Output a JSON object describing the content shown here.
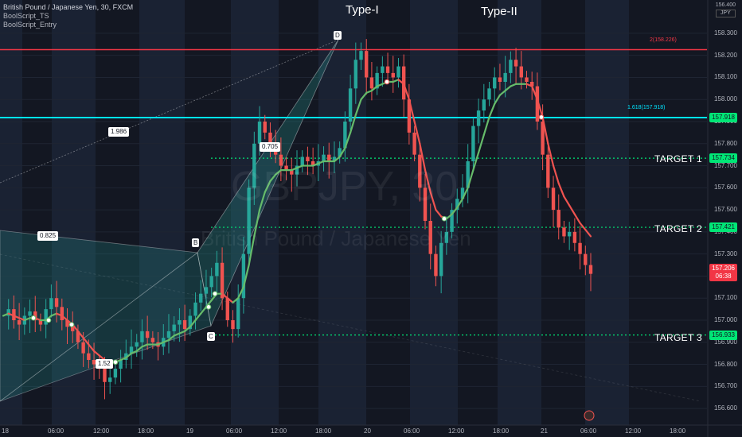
{
  "legend": {
    "symbol": "British Pound / Japanese Yen, 30, FXCM",
    "indicators": [
      "BoolScript_TS",
      "BoolScript_Entry"
    ]
  },
  "watermark": {
    "ticker": "GBPJPY, 30",
    "name": "British Pound / Japanese Yen"
  },
  "currency": {
    "top": "156.400",
    "unit": "JPY"
  },
  "annotations": {
    "type1": "Type-I",
    "type2": "Type-II",
    "target1": "TARGET 1",
    "target2": "TARGET 2",
    "target3": "TARGET 3"
  },
  "pattern_points": {
    "b": "B",
    "c": "C",
    "d": "D"
  },
  "ratios": {
    "r1": "1.986",
    "r2": "0.825",
    "r3": "1.52",
    "r4": "0.705"
  },
  "fib_labels": {
    "level2": "2(158.226)",
    "level1618": "1.618(157.918)"
  },
  "price_axis": [
    "158.300",
    "158.200",
    "158.100",
    "158.000",
    "157.900",
    "157.800",
    "157.700",
    "157.600",
    "157.500",
    "157.400",
    "157.300",
    "157.200",
    "157.100",
    "157.000",
    "156.900",
    "156.800",
    "156.700",
    "156.600"
  ],
  "price_tags": [
    {
      "value": "157.918",
      "bg": "#00e676",
      "fg": "#131722"
    },
    {
      "value": "157.734",
      "bg": "#00e676",
      "fg": "#131722"
    },
    {
      "value": "157.421",
      "bg": "#00e676",
      "fg": "#131722"
    },
    {
      "value": "156.933",
      "bg": "#00e676",
      "fg": "#131722"
    }
  ],
  "last_price": {
    "value": "157.206",
    "countdown": "06:38",
    "bg": "#f23645"
  },
  "time_axis": [
    "18",
    "06:00",
    "12:00",
    "18:00",
    "19",
    "06:00",
    "12:00",
    "18:00",
    "20",
    "06:00",
    "12:00",
    "18:00",
    "21",
    "06:00",
    "12:00",
    "18:00"
  ],
  "colors": {
    "up": "#26a69a",
    "down": "#ef5350",
    "target": "#00e676",
    "fib2": "#f23645",
    "fib1618": "#00e5ff",
    "ts_up": "#66bb6a",
    "ts_down": "#ef5350"
  },
  "chart_data": {
    "type": "line",
    "y_min": 156.6,
    "y_max": 158.3,
    "horizontal_levels": [
      {
        "name": "2",
        "value": 158.226
      },
      {
        "name": "1.618",
        "value": 157.918
      },
      {
        "name": "TARGET 1",
        "value": 157.734
      },
      {
        "name": "TARGET 2",
        "value": 157.421
      },
      {
        "name": "TARGET 3",
        "value": 156.933
      }
    ],
    "close_path": [
      157.02,
      157.05,
      157.0,
      156.98,
      157.02,
      157.04,
      157.0,
      156.98,
      157.05,
      157.1,
      157.06,
      157.0,
      156.97,
      156.95,
      156.9,
      156.85,
      156.82,
      156.8,
      156.78,
      156.72,
      156.74,
      156.78,
      156.82,
      156.85,
      156.88,
      156.9,
      156.95,
      156.92,
      156.9,
      156.88,
      156.92,
      156.95,
      156.98,
      157.0,
      156.96,
      157.02,
      157.08,
      157.12,
      157.15,
      157.2,
      157.26,
      157.1,
      157.0,
      156.96,
      157.1,
      157.3,
      157.6,
      157.8,
      157.9,
      157.85,
      157.8,
      157.75,
      157.7,
      157.68,
      157.66,
      157.7,
      157.74,
      157.72,
      157.7,
      157.72,
      157.75,
      157.72,
      157.74,
      157.78,
      157.9,
      158.05,
      158.18,
      158.22,
      158.1,
      158.05,
      158.12,
      158.15,
      158.12,
      158.1,
      158.15,
      158.0,
      157.85,
      157.75,
      157.6,
      157.45,
      157.3,
      157.2,
      157.35,
      157.4,
      157.5,
      157.55,
      157.6,
      157.72,
      157.88,
      157.95,
      158.0,
      158.05,
      158.1,
      158.08,
      158.12,
      158.18,
      158.15,
      158.1,
      158.08,
      158.06,
      157.9,
      157.75,
      157.6,
      157.5,
      157.42,
      157.38,
      157.4,
      157.35,
      157.3,
      157.25,
      157.21
    ],
    "ts_path": [
      157.02,
      157.03,
      157.02,
      157.01,
      157.0,
      157.01,
      157.01,
      157.0,
      157.0,
      157.02,
      157.03,
      157.02,
      157.0,
      156.98,
      156.95,
      156.92,
      156.89,
      156.86,
      156.84,
      156.82,
      156.81,
      156.81,
      156.82,
      156.83,
      156.85,
      156.86,
      156.88,
      156.89,
      156.89,
      156.89,
      156.9,
      156.91,
      156.93,
      156.94,
      156.95,
      156.97,
      157.0,
      157.03,
      157.06,
      157.09,
      157.12,
      157.12,
      157.1,
      157.08,
      157.1,
      157.15,
      157.25,
      157.38,
      157.5,
      157.58,
      157.63,
      157.66,
      157.68,
      157.68,
      157.68,
      157.69,
      157.7,
      157.7,
      157.7,
      157.71,
      157.72,
      157.72,
      157.72,
      157.74,
      157.78,
      157.85,
      157.93,
      158.0,
      158.03,
      158.04,
      158.06,
      158.07,
      158.08,
      158.08,
      158.09,
      158.07,
      158.0,
      157.9,
      157.8,
      157.68,
      157.58,
      157.5,
      157.47,
      157.46,
      157.48,
      157.51,
      157.55,
      157.6,
      157.68,
      157.76,
      157.84,
      157.92,
      157.98,
      158.02,
      158.04,
      158.06,
      158.07,
      158.07,
      158.07,
      158.06,
      158.0,
      157.92,
      157.8,
      157.7,
      157.62,
      157.56,
      157.52,
      157.48,
      157.44,
      157.41,
      157.38
    ]
  }
}
